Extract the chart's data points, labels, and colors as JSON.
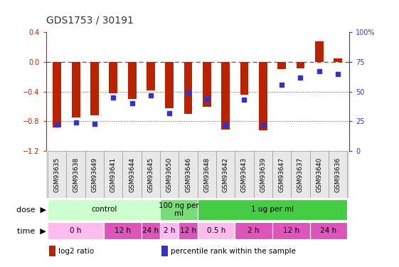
{
  "title": "GDS1753 / 30191",
  "samples": [
    "GSM93635",
    "GSM93638",
    "GSM93649",
    "GSM93641",
    "GSM93644",
    "GSM93645",
    "GSM93650",
    "GSM93646",
    "GSM93648",
    "GSM93642",
    "GSM93643",
    "GSM93639",
    "GSM93647",
    "GSM93637",
    "GSM93640",
    "GSM93636"
  ],
  "log2_ratio": [
    -0.88,
    -0.75,
    -0.72,
    -0.42,
    -0.5,
    -0.38,
    -0.62,
    -0.7,
    -0.6,
    -0.91,
    -0.44,
    -0.92,
    -0.1,
    -0.09,
    0.28,
    0.05
  ],
  "percentile": [
    22,
    24,
    23,
    45,
    40,
    47,
    32,
    49,
    44,
    22,
    43,
    22,
    56,
    62,
    67,
    65
  ],
  "ylim_left": [
    -1.2,
    0.4
  ],
  "ylim_right": [
    0,
    100
  ],
  "bar_color": "#bb2200",
  "dot_color": "#3333cc",
  "hline_color": "#cc2222",
  "dotline_color": "#555555",
  "bg_color": "#ffffff",
  "dose_groups": [
    {
      "label": "control",
      "start": 0,
      "end": 6,
      "color": "#ccffcc"
    },
    {
      "label": "100 ng per\nml",
      "start": 6,
      "end": 8,
      "color": "#77dd77"
    },
    {
      "label": "1 ug per ml",
      "start": 8,
      "end": 16,
      "color": "#44cc44"
    }
  ],
  "time_groups": [
    {
      "label": "0 h",
      "start": 0,
      "end": 3,
      "color": "#ffbbee"
    },
    {
      "label": "12 h",
      "start": 3,
      "end": 5,
      "color": "#dd55bb"
    },
    {
      "label": "24 h",
      "start": 5,
      "end": 6,
      "color": "#dd55bb"
    },
    {
      "label": "2 h",
      "start": 6,
      "end": 7,
      "color": "#ffbbee"
    },
    {
      "label": "12 h",
      "start": 7,
      "end": 8,
      "color": "#dd55bb"
    },
    {
      "label": "0.5 h",
      "start": 8,
      "end": 10,
      "color": "#ffbbee"
    },
    {
      "label": "2 h",
      "start": 10,
      "end": 12,
      "color": "#dd55bb"
    },
    {
      "label": "12 h",
      "start": 12,
      "end": 14,
      "color": "#dd55bb"
    },
    {
      "label": "24 h",
      "start": 14,
      "end": 16,
      "color": "#dd55bb"
    }
  ],
  "legend_items": [
    {
      "label": "log2 ratio",
      "color": "#bb2200"
    },
    {
      "label": "percentile rank within the sample",
      "color": "#3333cc"
    }
  ],
  "label_fontsize": 8,
  "tick_fontsize": 7,
  "sample_fontsize": 6.5,
  "bar_width": 0.45
}
